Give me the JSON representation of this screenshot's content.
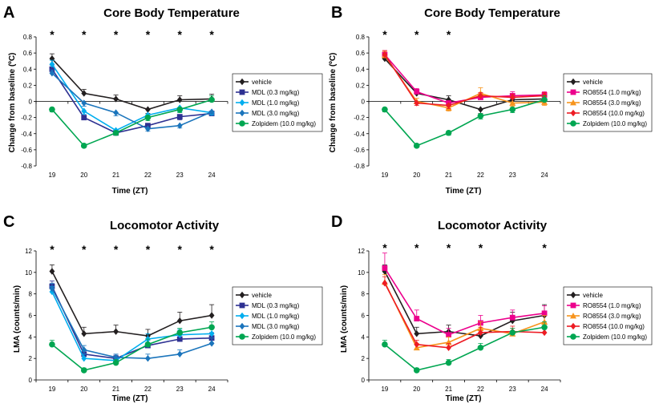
{
  "colors": {
    "vehicle": "#231f20",
    "drugA": "#2e3192",
    "drugB": "#00aeef",
    "drugC": "#1b75bc",
    "zolpidem": "#00a651",
    "ro1": "#ec008c",
    "ro3": "#f7941d",
    "ro10": "#ed1c24"
  },
  "chart_data": [
    {
      "panel": "A",
      "type": "line",
      "title": "Core Body Temperature",
      "xlabel": "Time (ZT)",
      "ylabel": "Change from baseline (ºC)",
      "x": [
        19,
        20,
        21,
        22,
        23,
        24
      ],
      "xticks": [
        "19",
        "20",
        "21",
        "22",
        "23",
        "24"
      ],
      "ylim": [
        -0.8,
        0.8
      ],
      "yticks": [
        "-0.8",
        "-0.6",
        "-0.4",
        "-0.2",
        "0",
        "0.2",
        "0.4",
        "0.6",
        "0.8"
      ],
      "significance": [
        19,
        20,
        21,
        22,
        23,
        24
      ],
      "significance_mark": "*",
      "legend_position": "right",
      "series": [
        {
          "name": "vehicle",
          "color": "vehicle",
          "marker": "diamond",
          "values": [
            0.53,
            0.1,
            0.03,
            -0.1,
            0.02,
            0.03
          ],
          "errors": [
            0.06,
            0.05,
            0.05,
            0.05,
            0.05,
            0.06
          ]
        },
        {
          "name": "MDL (0.3 mg/kg)",
          "color": "drugA",
          "marker": "square",
          "values": [
            0.4,
            -0.2,
            -0.39,
            -0.3,
            -0.19,
            -0.15
          ],
          "errors": [
            0.05,
            0.03,
            0.03,
            0.03,
            0.04,
            0.03
          ]
        },
        {
          "name": "MDL (1.0 mg/kg)",
          "color": "drugB",
          "marker": "diamond",
          "values": [
            0.46,
            -0.12,
            -0.36,
            -0.17,
            -0.08,
            -0.14
          ],
          "errors": [
            0.05,
            0.04,
            0.03,
            0.04,
            0.05,
            0.03
          ]
        },
        {
          "name": "MDL (3.0 mg/kg)",
          "color": "drugC",
          "marker": "diamond",
          "values": [
            0.35,
            -0.02,
            -0.14,
            -0.34,
            -0.3,
            -0.13
          ],
          "errors": [
            0.04,
            0.04,
            0.04,
            0.03,
            0.03,
            0.03
          ]
        },
        {
          "name": "Zolpidem (10.0 mg/kg)",
          "color": "zolpidem",
          "marker": "circle",
          "values": [
            -0.1,
            -0.55,
            -0.39,
            -0.2,
            -0.1,
            0.02
          ],
          "errors": [
            0.03,
            0.02,
            0.03,
            0.04,
            0.04,
            0.05
          ]
        }
      ]
    },
    {
      "panel": "B",
      "type": "line",
      "title": "Core Body Temperature",
      "xlabel": "Time (ZT)",
      "ylabel": "Change from baseline (ºC)",
      "x": [
        19,
        20,
        21,
        22,
        23,
        24
      ],
      "xticks": [
        "19",
        "20",
        "21",
        "22",
        "23",
        "24"
      ],
      "ylim": [
        -0.8,
        0.8
      ],
      "yticks": [
        "-0.8",
        "-0.6",
        "-0.4",
        "-0.2",
        "0",
        "0.2",
        "0.4",
        "0.6",
        "0.8"
      ],
      "significance": [
        19,
        20,
        21
      ],
      "significance_mark": "*",
      "legend_position": "right",
      "series": [
        {
          "name": "vehicle",
          "color": "vehicle",
          "marker": "diamond",
          "values": [
            0.53,
            0.1,
            0.02,
            -0.1,
            0.02,
            0.03
          ],
          "errors": [
            0.05,
            0.05,
            0.05,
            0.05,
            0.05,
            0.05
          ]
        },
        {
          "name": "RO8554 (1.0 mg/kg)",
          "color": "ro1",
          "marker": "square",
          "values": [
            0.58,
            0.12,
            -0.02,
            0.05,
            0.07,
            0.08
          ],
          "errors": [
            0.05,
            0.04,
            0.04,
            0.05,
            0.05,
            0.04
          ]
        },
        {
          "name": "RO8554 (3.0 mg/kg)",
          "color": "ro3",
          "marker": "triangle",
          "values": [
            0.57,
            0.0,
            -0.08,
            0.1,
            -0.02,
            -0.01
          ],
          "errors": [
            0.05,
            0.04,
            0.04,
            0.07,
            0.04,
            0.04
          ]
        },
        {
          "name": "RO8554 (10.0 mg/kg)",
          "color": "ro10",
          "marker": "diamond",
          "values": [
            0.58,
            -0.02,
            -0.05,
            0.07,
            0.05,
            0.07
          ],
          "errors": [
            0.05,
            0.03,
            0.04,
            0.04,
            0.04,
            0.04
          ]
        },
        {
          "name": "Zolpidem (10.0 mg/kg)",
          "color": "zolpidem",
          "marker": "circle",
          "values": [
            -0.1,
            -0.55,
            -0.39,
            -0.18,
            -0.1,
            0.02
          ],
          "errors": [
            0.03,
            0.02,
            0.03,
            0.04,
            0.04,
            0.05
          ]
        }
      ]
    },
    {
      "panel": "C",
      "type": "line",
      "title": "Locomotor Activity",
      "xlabel": "Time (ZT)",
      "ylabel": "LMA (counts/min)",
      "x": [
        19,
        20,
        21,
        22,
        23,
        24
      ],
      "xticks": [
        "19",
        "20",
        "21",
        "22",
        "23",
        "24"
      ],
      "ylim": [
        0,
        12
      ],
      "yticks": [
        "0",
        "2",
        "4",
        "6",
        "8",
        "10",
        "12"
      ],
      "significance": [
        19,
        20,
        21,
        22,
        23,
        24
      ],
      "significance_mark": "*",
      "legend_position": "right",
      "series": [
        {
          "name": "vehicle",
          "color": "vehicle",
          "marker": "diamond",
          "values": [
            10.1,
            4.3,
            4.5,
            4.1,
            5.5,
            6.0
          ],
          "errors": [
            0.6,
            0.6,
            0.6,
            0.6,
            0.8,
            1.0
          ]
        },
        {
          "name": "MDL (0.3 mg/kg)",
          "color": "drugA",
          "marker": "square",
          "values": [
            8.7,
            2.4,
            2.0,
            3.2,
            3.8,
            3.9
          ],
          "errors": [
            0.5,
            0.4,
            0.3,
            0.5,
            0.5,
            0.5
          ]
        },
        {
          "name": "MDL (1.0 mg/kg)",
          "color": "drugB",
          "marker": "diamond",
          "values": [
            8.2,
            2.0,
            1.8,
            3.8,
            4.2,
            4.3
          ],
          "errors": [
            0.5,
            0.4,
            0.3,
            0.5,
            0.5,
            0.5
          ]
        },
        {
          "name": "MDL (3.0 mg/kg)",
          "color": "drugC",
          "marker": "diamond",
          "values": [
            8.5,
            2.8,
            2.1,
            2.0,
            2.4,
            3.4
          ],
          "errors": [
            0.5,
            0.4,
            0.3,
            0.4,
            0.4,
            0.5
          ]
        },
        {
          "name": "Zolpidem (10.0 mg/kg)",
          "color": "zolpidem",
          "marker": "circle",
          "values": [
            3.3,
            0.9,
            1.6,
            3.3,
            4.4,
            4.9
          ],
          "errors": [
            0.4,
            0.2,
            0.3,
            0.5,
            0.4,
            0.5
          ]
        }
      ]
    },
    {
      "panel": "D",
      "type": "line",
      "title": "Locomotor Activity",
      "xlabel": "Time (ZT)",
      "ylabel": "LMA (counts/min)",
      "x": [
        19,
        20,
        21,
        22,
        23,
        24
      ],
      "xticks": [
        "19",
        "20",
        "21",
        "22",
        "23",
        "24"
      ],
      "ylim": [
        0,
        12
      ],
      "yticks": [
        "0",
        "2",
        "4",
        "6",
        "8",
        "10",
        "12"
      ],
      "significance": [
        19,
        20,
        21,
        22,
        24
      ],
      "significance_mark": "*",
      "legend_position": "right",
      "series": [
        {
          "name": "vehicle",
          "color": "vehicle",
          "marker": "diamond",
          "values": [
            10.1,
            4.3,
            4.5,
            4.1,
            5.5,
            6.0
          ],
          "errors": [
            0.6,
            0.6,
            0.6,
            0.6,
            0.8,
            1.0
          ]
        },
        {
          "name": "RO8554 (1.0 mg/kg)",
          "color": "ro1",
          "marker": "square",
          "values": [
            10.4,
            5.7,
            4.2,
            5.3,
            5.8,
            6.2
          ],
          "errors": [
            1.4,
            0.8,
            0.6,
            0.7,
            0.7,
            0.7
          ]
        },
        {
          "name": "RO8554 (3.0 mg/kg)",
          "color": "ro3",
          "marker": "triangle",
          "values": [
            9.1,
            3.0,
            3.5,
            4.8,
            4.3,
            5.4
          ],
          "errors": [
            0.7,
            0.4,
            0.5,
            0.6,
            0.5,
            0.6
          ]
        },
        {
          "name": "RO8554 (10.0 mg/kg)",
          "color": "ro10",
          "marker": "diamond",
          "values": [
            9.0,
            3.3,
            3.0,
            4.4,
            4.5,
            4.4
          ],
          "errors": [
            0.6,
            0.4,
            0.4,
            0.5,
            0.5,
            0.5
          ]
        },
        {
          "name": "Zolpidem (10.0 mg/kg)",
          "color": "zolpidem",
          "marker": "circle",
          "values": [
            3.3,
            0.9,
            1.6,
            3.0,
            4.4,
            4.9
          ],
          "errors": [
            0.4,
            0.2,
            0.3,
            0.4,
            0.4,
            0.5
          ]
        }
      ]
    }
  ]
}
